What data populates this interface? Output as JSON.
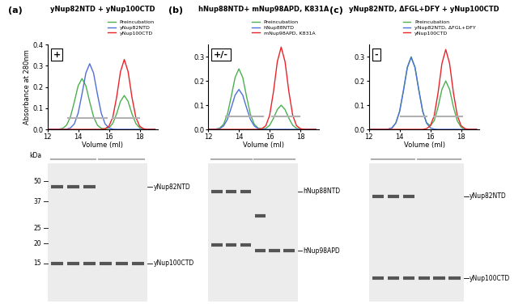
{
  "chart_data": [
    {
      "type": "line",
      "panel": "(a)",
      "title": "yNup82NTD + yNup100CTD",
      "badge": "+",
      "x_label": "Volume (ml)",
      "y_label": "Absorbance at 280nm",
      "x": [
        12,
        12.25,
        12.5,
        12.75,
        13,
        13.25,
        13.5,
        13.75,
        14,
        14.25,
        14.5,
        14.75,
        15,
        15.25,
        15.5,
        15.75,
        16,
        16.25,
        16.5,
        16.75,
        17,
        17.25,
        17.5,
        17.75,
        18,
        18.25,
        18.5,
        18.75,
        19
      ],
      "series": [
        {
          "name": "Preincubation",
          "color": "#4caf50",
          "values": [
            0,
            0,
            0,
            0.001,
            0.005,
            0.02,
            0.06,
            0.13,
            0.206,
            0.24,
            0.206,
            0.13,
            0.06,
            0.02,
            0.005,
            0.002,
            0.007,
            0.028,
            0.073,
            0.132,
            0.16,
            0.132,
            0.073,
            0.028,
            0.007,
            0.001,
            0,
            0,
            0
          ]
        },
        {
          "name": "yNup82NTD",
          "color": "#4f6fd9",
          "values": [
            0,
            0,
            0,
            0,
            0,
            0.001,
            0.007,
            0.026,
            0.077,
            0.167,
            0.266,
            0.31,
            0.266,
            0.167,
            0.077,
            0.026,
            0.007,
            0.001,
            0,
            0,
            0,
            0,
            0,
            0,
            0,
            0,
            0,
            0,
            0
          ]
        },
        {
          "name": "yNup100CTD",
          "color": "#e8232a",
          "values": [
            0,
            0,
            0,
            0,
            0,
            0,
            0,
            0,
            0,
            0,
            0,
            0,
            0,
            0,
            0,
            0.003,
            0.015,
            0.057,
            0.151,
            0.272,
            0.33,
            0.272,
            0.151,
            0.057,
            0.015,
            0.003,
            0,
            0,
            0
          ]
        }
      ],
      "fractions": [
        [
          13.3,
          15.9
        ],
        [
          16.2,
          18.0
        ]
      ],
      "fraction_level": 0.055,
      "xlim": [
        12,
        19.2
      ],
      "xticks": [
        12,
        14,
        16,
        18
      ],
      "ylim": [
        0,
        0.4
      ],
      "yticks": [
        {
          "value": 0,
          "label": "0.0"
        },
        {
          "value": 0.1,
          "label": "0.1"
        },
        {
          "value": 0.2,
          "label": "0.2"
        },
        {
          "value": 0.3,
          "label": "0.3"
        },
        {
          "value": 0.4,
          "label": "0.4"
        }
      ],
      "legend": "upper right",
      "gel": {
        "kda_range": [
          8.5,
          65
        ],
        "lanes": 6,
        "marker_unit": "kDa",
        "markers": [
          50,
          37,
          25,
          20,
          15
        ],
        "bands": [
          {
            "label": "yNup82NTD",
            "kda": 46,
            "lanes": [
              1,
              2,
              3
            ]
          },
          {
            "label": "yNup100CTD",
            "kda": 15,
            "lanes": [
              1,
              2,
              3,
              4,
              5,
              6
            ]
          }
        ]
      }
    },
    {
      "type": "line",
      "panel": "(b)",
      "title": "hNup88NTD+ mNup98APD, K831A",
      "badge": "+/-",
      "x_label": "Volume (ml)",
      "x": [
        12,
        12.25,
        12.5,
        12.75,
        13,
        13.25,
        13.5,
        13.75,
        14,
        14.25,
        14.5,
        14.75,
        15,
        15.25,
        15.5,
        15.75,
        16,
        16.25,
        16.5,
        16.75,
        17,
        17.25,
        17.5,
        17.75,
        18,
        18.25,
        18.5,
        18.75,
        19
      ],
      "series": [
        {
          "name": "Preincubation",
          "color": "#4caf50",
          "values": [
            0,
            0,
            0.001,
            0.005,
            0.021,
            0.062,
            0.135,
            0.214,
            0.25,
            0.214,
            0.135,
            0.062,
            0.021,
            0.005,
            0.002,
            0.004,
            0.017,
            0.046,
            0.082,
            0.1,
            0.082,
            0.046,
            0.017,
            0.004,
            0.001,
            0,
            0,
            0,
            0
          ]
        },
        {
          "name": "hNup88NTD",
          "color": "#4f6fd9",
          "values": [
            0,
            0,
            0.001,
            0.003,
            0.014,
            0.041,
            0.089,
            0.141,
            0.165,
            0.141,
            0.089,
            0.041,
            0.014,
            0.003,
            0.001,
            0,
            0,
            0,
            0,
            0,
            0,
            0,
            0,
            0,
            0,
            0,
            0,
            0,
            0
          ]
        },
        {
          "name": "mNup98APD, K831A",
          "color": "#e8232a",
          "values": [
            0,
            0,
            0,
            0,
            0,
            0,
            0,
            0,
            0,
            0,
            0,
            0,
            0,
            0,
            0.003,
            0.015,
            0.058,
            0.156,
            0.28,
            0.34,
            0.28,
            0.156,
            0.058,
            0.015,
            0.003,
            0,
            0,
            0,
            0
          ]
        }
      ],
      "fractions": [
        [
          13.1,
          15.6
        ],
        [
          16.1,
          18.0
        ]
      ],
      "fraction_level": 0.055,
      "xlim": [
        12,
        19.2
      ],
      "xticks": [
        12,
        14,
        16,
        18
      ],
      "ylim": [
        0,
        0.35
      ],
      "yticks": [
        {
          "value": 0,
          "label": "0.0"
        },
        {
          "value": 0.1,
          "label": "0.1"
        },
        {
          "value": 0.2,
          "label": "0.2"
        },
        {
          "value": 0.3,
          "label": "0.3"
        }
      ],
      "legend": "upper right",
      "gel": {
        "kda_range": [
          8.5,
          65
        ],
        "lanes": 6,
        "bands": [
          {
            "label": "hNup88NTD",
            "kda": 43,
            "lanes": [
              1,
              2,
              3
            ]
          },
          {
            "kda": 19.5,
            "lanes": [
              1,
              2,
              3
            ]
          },
          {
            "kda": 30,
            "lanes": [
              4
            ]
          },
          {
            "label": "hNup98APD",
            "kda": 18,
            "lanes": [
              4,
              5,
              6
            ]
          }
        ]
      }
    },
    {
      "type": "line",
      "panel": "(c)",
      "title": "yNup82NTD, ΔFGL+DFY + yNup100CTD",
      "badge": "-",
      "x_label": "Volume (ml)",
      "x": [
        12,
        12.25,
        12.5,
        12.75,
        13,
        13.25,
        13.5,
        13.75,
        14,
        14.25,
        14.5,
        14.75,
        15,
        15.25,
        15.5,
        15.75,
        16,
        16.25,
        16.5,
        16.75,
        17,
        17.25,
        17.5,
        17.75,
        18,
        18.25,
        18.5,
        18.75,
        19
      ],
      "series": [
        {
          "name": "Preincubation",
          "color": "#4caf50",
          "values": [
            0,
            0,
            0,
            0,
            0,
            0.001,
            0.006,
            0.026,
            0.075,
            0.162,
            0.257,
            0.3,
            0.257,
            0.162,
            0.075,
            0.028,
            0.015,
            0.036,
            0.092,
            0.165,
            0.2,
            0.165,
            0.092,
            0.035,
            0.009,
            0.002,
            0,
            0,
            0
          ]
        },
        {
          "name": "yNup82NTD, ΔFGL+DFY",
          "color": "#4f6fd9",
          "values": [
            0,
            0,
            0,
            0,
            0,
            0.001,
            0.006,
            0.026,
            0.074,
            0.161,
            0.255,
            0.298,
            0.255,
            0.161,
            0.074,
            0.026,
            0.006,
            0.001,
            0,
            0,
            0,
            0,
            0,
            0,
            0,
            0,
            0,
            0,
            0
          ]
        },
        {
          "name": "yNup100CTD",
          "color": "#e8232a",
          "values": [
            0,
            0,
            0,
            0,
            0,
            0,
            0,
            0,
            0,
            0,
            0,
            0,
            0,
            0,
            0,
            0.003,
            0.015,
            0.057,
            0.151,
            0.272,
            0.33,
            0.272,
            0.151,
            0.057,
            0.015,
            0.003,
            0,
            0,
            0
          ]
        }
      ],
      "fractions": [
        [
          14.0,
          15.8
        ],
        [
          16.2,
          18.1
        ]
      ],
      "fraction_level": 0.055,
      "xlim": [
        12,
        19.2
      ],
      "xticks": [
        12,
        14,
        16,
        18
      ],
      "ylim": [
        0,
        0.35
      ],
      "yticks": [
        {
          "value": 0,
          "label": "0.0"
        },
        {
          "value": 0.1,
          "label": "0.1"
        },
        {
          "value": 0.2,
          "label": "0.2"
        },
        {
          "value": 0.3,
          "label": "0.3"
        }
      ],
      "legend": "upper right",
      "gel": {
        "kda_range": [
          8.5,
          65
        ],
        "lanes": 6,
        "bands": [
          {
            "label": "yNup82NTD",
            "kda": 40,
            "lanes": [
              1,
              2,
              3
            ]
          },
          {
            "label": "yNup100CTD",
            "kda": 12,
            "lanes": [
              1,
              2,
              3,
              4,
              5,
              6
            ]
          }
        ]
      }
    }
  ]
}
